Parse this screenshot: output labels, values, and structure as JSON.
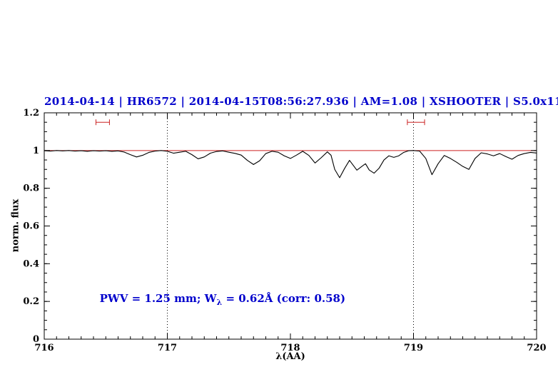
{
  "chart_data": {
    "type": "line",
    "title": "2014-04-14 | HR6572 | 2014-04-15T08:56:27.936 | AM=1.08 | XSHOOTER | S5.0x11",
    "xlabel": "λ(AA)",
    "ylabel": "norm. flux",
    "xlim": [
      716,
      720
    ],
    "ylim": [
      0,
      1.2
    ],
    "xticks": {
      "major": [
        716,
        717,
        718,
        719,
        720
      ],
      "labels": [
        "716",
        "717",
        "718",
        "719",
        "720"
      ],
      "minor_step": 0.1
    },
    "yticks": {
      "major": [
        0,
        0.2,
        0.4,
        0.6,
        0.8,
        1,
        1.2
      ],
      "labels": [
        "0",
        "0.2",
        "0.4",
        "0.6",
        "0.8",
        "1",
        "1.2"
      ],
      "minor_step": 0.05
    },
    "vlines": {
      "x": [
        717,
        719
      ],
      "style": "dotted",
      "color": "#000000"
    },
    "continuum": {
      "y": 1.0,
      "color": "#cc2222"
    },
    "range_markers": [
      {
        "x1": 716.42,
        "x2": 716.53,
        "y": 1.15,
        "color": "#cc2222"
      },
      {
        "x1": 718.95,
        "x2": 719.09,
        "y": 1.15,
        "color": "#cc2222"
      }
    ],
    "annotation": {
      "x": 716.45,
      "y": 0.2
    },
    "annotation_parts": {
      "prefix": "PWV = 1.25 mm; W",
      "sub": "λ",
      "suffix": " = 0.62Å (corr: 0.58)"
    },
    "series": [
      {
        "name": "spectrum",
        "color": "#000000",
        "points": [
          [
            716.0,
            0.999
          ],
          [
            716.05,
            0.997
          ],
          [
            716.1,
            1.0
          ],
          [
            716.15,
            0.998
          ],
          [
            716.2,
            1.0
          ],
          [
            716.25,
            0.997
          ],
          [
            716.3,
            0.999
          ],
          [
            716.35,
            0.996
          ],
          [
            716.4,
            0.999
          ],
          [
            716.45,
            0.997
          ],
          [
            716.5,
            0.999
          ],
          [
            716.55,
            0.996
          ],
          [
            716.6,
            0.998
          ],
          [
            716.65,
            0.992
          ],
          [
            716.7,
            0.978
          ],
          [
            716.75,
            0.966
          ],
          [
            716.8,
            0.975
          ],
          [
            716.85,
            0.99
          ],
          [
            716.9,
            0.997
          ],
          [
            716.95,
            1.0
          ],
          [
            717.0,
            0.996
          ],
          [
            717.05,
            0.986
          ],
          [
            717.1,
            0.991
          ],
          [
            717.15,
            0.996
          ],
          [
            717.2,
            0.978
          ],
          [
            717.25,
            0.956
          ],
          [
            717.3,
            0.966
          ],
          [
            717.35,
            0.986
          ],
          [
            717.4,
            0.995
          ],
          [
            717.45,
            0.998
          ],
          [
            717.5,
            0.991
          ],
          [
            717.55,
            0.985
          ],
          [
            717.6,
            0.976
          ],
          [
            717.65,
            0.948
          ],
          [
            717.7,
            0.926
          ],
          [
            717.75,
            0.946
          ],
          [
            717.8,
            0.984
          ],
          [
            717.85,
            0.996
          ],
          [
            717.9,
            0.991
          ],
          [
            717.95,
            0.972
          ],
          [
            718.0,
            0.958
          ],
          [
            718.05,
            0.976
          ],
          [
            718.1,
            0.996
          ],
          [
            718.15,
            0.974
          ],
          [
            718.2,
            0.934
          ],
          [
            718.25,
            0.962
          ],
          [
            718.3,
            0.993
          ],
          [
            718.33,
            0.975
          ],
          [
            718.36,
            0.9
          ],
          [
            718.4,
            0.856
          ],
          [
            718.44,
            0.905
          ],
          [
            718.48,
            0.948
          ],
          [
            718.51,
            0.922
          ],
          [
            718.54,
            0.896
          ],
          [
            718.58,
            0.916
          ],
          [
            718.61,
            0.93
          ],
          [
            718.64,
            0.897
          ],
          [
            718.68,
            0.88
          ],
          [
            718.72,
            0.906
          ],
          [
            718.76,
            0.95
          ],
          [
            718.8,
            0.972
          ],
          [
            718.84,
            0.964
          ],
          [
            718.88,
            0.972
          ],
          [
            718.92,
            0.99
          ],
          [
            718.96,
            0.999
          ],
          [
            719.0,
            1.0
          ],
          [
            719.05,
            0.997
          ],
          [
            719.1,
            0.958
          ],
          [
            719.15,
            0.872
          ],
          [
            719.2,
            0.93
          ],
          [
            719.25,
            0.974
          ],
          [
            719.3,
            0.958
          ],
          [
            719.35,
            0.938
          ],
          [
            719.4,
            0.916
          ],
          [
            719.45,
            0.9
          ],
          [
            719.5,
            0.958
          ],
          [
            719.55,
            0.988
          ],
          [
            719.6,
            0.982
          ],
          [
            719.65,
            0.972
          ],
          [
            719.7,
            0.984
          ],
          [
            719.75,
            0.968
          ],
          [
            719.8,
            0.954
          ],
          [
            719.85,
            0.974
          ],
          [
            719.9,
            0.984
          ],
          [
            719.95,
            0.99
          ],
          [
            720.0,
            0.987
          ]
        ]
      }
    ]
  }
}
